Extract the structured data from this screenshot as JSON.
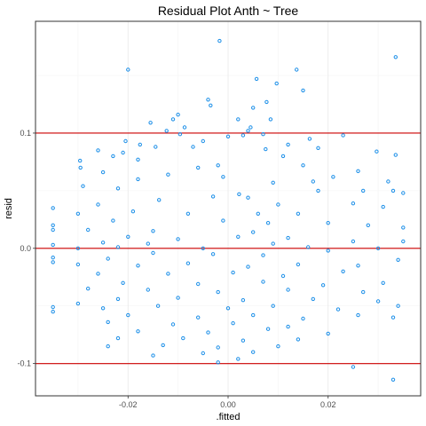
{
  "chart_data": {
    "type": "scatter",
    "title": "Residual Plot Anth ~ Tree",
    "xlabel": ".fitted",
    "ylabel": "resid",
    "xlim": [
      -0.0385,
      0.0385
    ],
    "ylim": [
      -0.128,
      0.197
    ],
    "x_ticks": [
      -0.02,
      0.0,
      0.02
    ],
    "x_tick_labels": [
      "-0.02",
      "0.00",
      "0.02"
    ],
    "y_ticks": [
      -0.1,
      0.0,
      0.1
    ],
    "y_tick_labels": [
      "-0.1",
      "0.0",
      "0.1"
    ],
    "grid": true,
    "reference_lines": [
      -0.1,
      0.0,
      0.1
    ],
    "reference_line_color": "#cc0000",
    "point_color": "#1e90e8",
    "points": [
      [
        -0.0017,
        0.18
      ],
      [
        0.0335,
        0.166
      ],
      [
        -0.02,
        0.155
      ],
      [
        0.0137,
        0.155
      ],
      [
        0.0057,
        0.147
      ],
      [
        0.0097,
        0.143
      ],
      [
        0.015,
        0.137
      ],
      [
        -0.004,
        0.129
      ],
      [
        0.0077,
        0.127
      ],
      [
        -0.0035,
        0.124
      ],
      [
        0.005,
        0.122
      ],
      [
        -0.01,
        0.116
      ],
      [
        -0.011,
        0.112
      ],
      [
        0.002,
        0.112
      ],
      [
        0.0085,
        0.112
      ],
      [
        -0.0155,
        0.109
      ],
      [
        -0.0087,
        0.105
      ],
      [
        0.0045,
        0.105
      ],
      [
        0.004,
        0.102
      ],
      [
        -0.0123,
        0.102
      ],
      [
        -0.0096,
        0.099
      ],
      [
        0.0,
        0.097
      ],
      [
        0.003,
        0.098
      ],
      [
        0.007,
        0.099
      ],
      [
        0.0163,
        0.095
      ],
      [
        0.023,
        0.098
      ],
      [
        -0.0205,
        0.093
      ],
      [
        -0.0176,
        0.09
      ],
      [
        -0.005,
        0.093
      ],
      [
        -0.0145,
        0.088
      ],
      [
        0.012,
        0.09
      ],
      [
        0.018,
        0.087
      ],
      [
        -0.007,
        0.088
      ],
      [
        0.0075,
        0.086
      ],
      [
        -0.026,
        0.085
      ],
      [
        0.0297,
        0.084
      ],
      [
        0.0335,
        0.081
      ],
      [
        -0.0296,
        0.076
      ],
      [
        -0.023,
        0.08
      ],
      [
        -0.021,
        0.083
      ],
      [
        -0.018,
        0.077
      ],
      [
        0.011,
        0.08
      ],
      [
        -0.002,
        0.072
      ],
      [
        -0.006,
        0.07
      ],
      [
        0.015,
        0.072
      ],
      [
        -0.0295,
        0.07
      ],
      [
        -0.025,
        0.066
      ],
      [
        -0.012,
        0.064
      ],
      [
        -0.001,
        0.062
      ],
      [
        0.026,
        0.067
      ],
      [
        0.021,
        0.062
      ],
      [
        0.032,
        0.058
      ],
      [
        -0.018,
        0.06
      ],
      [
        0.017,
        0.058
      ],
      [
        0.009,
        0.057
      ],
      [
        -0.029,
        0.054
      ],
      [
        -0.022,
        0.052
      ],
      [
        0.018,
        0.05
      ],
      [
        0.027,
        0.05
      ],
      [
        0.035,
        0.048
      ],
      [
        0.033,
        0.05
      ],
      [
        0.0022,
        0.047
      ],
      [
        -0.003,
        0.045
      ],
      [
        0.004,
        0.044
      ],
      [
        -0.0138,
        0.042
      ],
      [
        -0.035,
        0.035
      ],
      [
        -0.026,
        0.038
      ],
      [
        0.025,
        0.039
      ],
      [
        0.031,
        0.036
      ],
      [
        0.01,
        0.038
      ],
      [
        -0.03,
        0.03
      ],
      [
        -0.019,
        0.032
      ],
      [
        -0.008,
        0.03
      ],
      [
        0.006,
        0.03
      ],
      [
        0.014,
        0.03
      ],
      [
        -0.023,
        0.024
      ],
      [
        -0.001,
        0.024
      ],
      [
        0.008,
        0.022
      ],
      [
        0.02,
        0.022
      ],
      [
        0.028,
        0.02
      ],
      [
        -0.035,
        0.02
      ],
      [
        -0.035,
        0.016
      ],
      [
        -0.028,
        0.016
      ],
      [
        -0.015,
        0.015
      ],
      [
        0.005,
        0.014
      ],
      [
        0.035,
        0.018
      ],
      [
        -0.02,
        0.01
      ],
      [
        -0.01,
        0.008
      ],
      [
        0.002,
        0.01
      ],
      [
        0.012,
        0.009
      ],
      [
        -0.025,
        0.005
      ],
      [
        -0.016,
        0.004
      ],
      [
        0.009,
        0.004
      ],
      [
        0.025,
        0.006
      ],
      [
        0.035,
        0.006
      ],
      [
        -0.035,
        0.003
      ],
      [
        -0.03,
        0.0
      ],
      [
        -0.022,
        0.001
      ],
      [
        -0.005,
        0.0
      ],
      [
        0.016,
        0.001
      ],
      [
        0.03,
        0.0
      ],
      [
        0.02,
        -0.002
      ],
      [
        -0.015,
        -0.004
      ],
      [
        -0.003,
        -0.005
      ],
      [
        0.007,
        -0.006
      ],
      [
        -0.035,
        -0.008
      ],
      [
        -0.024,
        -0.009
      ],
      [
        0.034,
        -0.01
      ],
      [
        -0.03,
        -0.014
      ],
      [
        -0.018,
        -0.015
      ],
      [
        -0.008,
        -0.013
      ],
      [
        0.004,
        -0.016
      ],
      [
        0.014,
        -0.014
      ],
      [
        0.026,
        -0.015
      ],
      [
        -0.035,
        -0.012
      ],
      [
        -0.026,
        -0.022
      ],
      [
        -0.012,
        -0.022
      ],
      [
        0.001,
        -0.021
      ],
      [
        0.011,
        -0.024
      ],
      [
        0.023,
        -0.02
      ],
      [
        -0.021,
        -0.03
      ],
      [
        -0.006,
        -0.031
      ],
      [
        0.007,
        -0.029
      ],
      [
        0.019,
        -0.032
      ],
      [
        0.031,
        -0.03
      ],
      [
        -0.028,
        -0.035
      ],
      [
        -0.016,
        -0.036
      ],
      [
        -0.002,
        -0.038
      ],
      [
        0.012,
        -0.036
      ],
      [
        0.027,
        -0.038
      ],
      [
        -0.022,
        -0.044
      ],
      [
        -0.01,
        -0.043
      ],
      [
        0.003,
        -0.045
      ],
      [
        0.017,
        -0.044
      ],
      [
        0.03,
        -0.046
      ],
      [
        -0.035,
        -0.051
      ],
      [
        -0.035,
        -0.055
      ],
      [
        -0.03,
        -0.048
      ],
      [
        -0.025,
        -0.052
      ],
      [
        -0.014,
        -0.05
      ],
      [
        0.0,
        -0.052
      ],
      [
        0.009,
        -0.05
      ],
      [
        0.022,
        -0.053
      ],
      [
        0.034,
        -0.05
      ],
      [
        -0.02,
        -0.058
      ],
      [
        -0.006,
        -0.06
      ],
      [
        0.005,
        -0.058
      ],
      [
        0.015,
        -0.061
      ],
      [
        0.026,
        -0.058
      ],
      [
        -0.024,
        -0.064
      ],
      [
        -0.011,
        -0.066
      ],
      [
        0.001,
        -0.065
      ],
      [
        0.012,
        -0.068
      ],
      [
        -0.018,
        -0.072
      ],
      [
        -0.004,
        -0.073
      ],
      [
        0.008,
        -0.07
      ],
      [
        0.02,
        -0.074
      ],
      [
        0.033,
        -0.06
      ],
      [
        -0.022,
        -0.078
      ],
      [
        -0.009,
        -0.078
      ],
      [
        0.003,
        -0.08
      ],
      [
        0.014,
        -0.079
      ],
      [
        -0.024,
        -0.085
      ],
      [
        -0.013,
        -0.084
      ],
      [
        -0.002,
        -0.086
      ],
      [
        0.01,
        -0.085
      ],
      [
        -0.005,
        -0.091
      ],
      [
        0.005,
        -0.09
      ],
      [
        -0.015,
        -0.093
      ],
      [
        0.002,
        -0.096
      ],
      [
        -0.002,
        -0.099
      ],
      [
        0.025,
        -0.103
      ],
      [
        0.033,
        -0.114
      ]
    ]
  }
}
